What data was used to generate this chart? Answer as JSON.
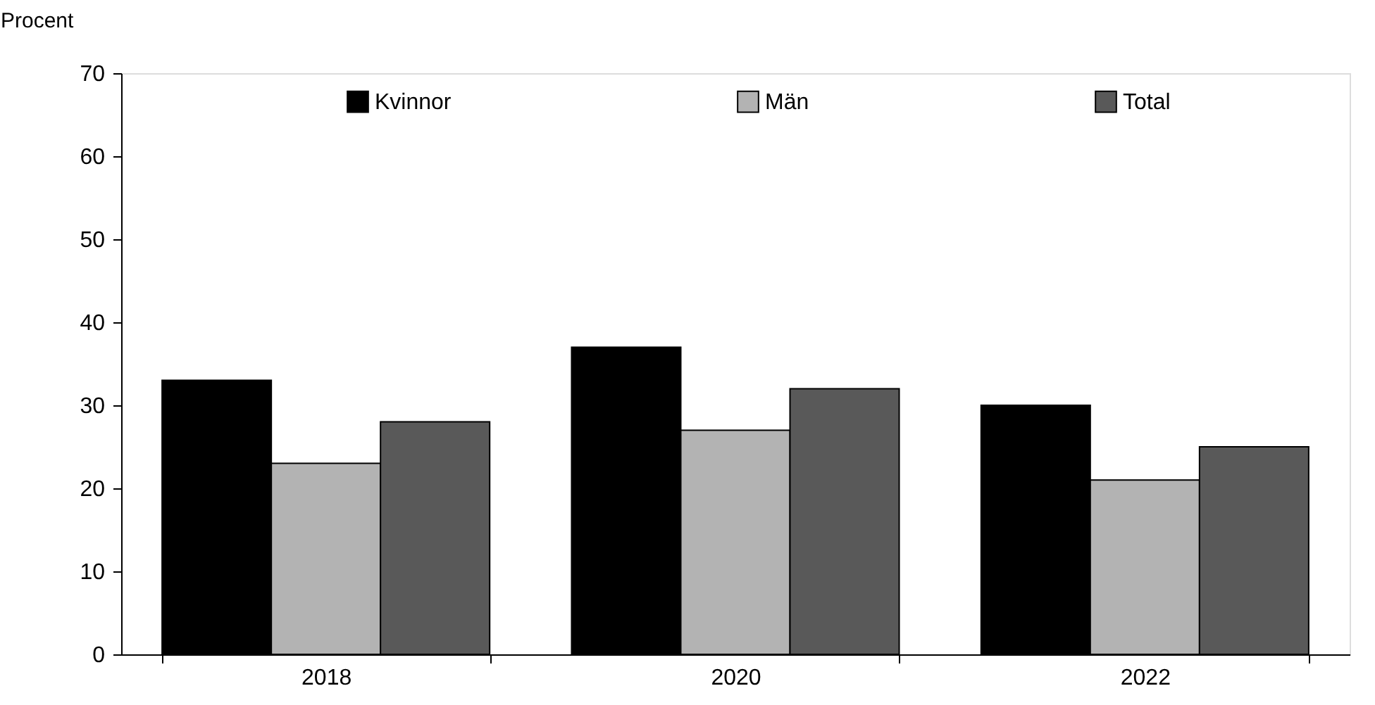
{
  "chart_data": {
    "type": "bar",
    "ylabel": "Procent",
    "categories": [
      "2018",
      "2020",
      "2022"
    ],
    "series": [
      {
        "name": "Kvinnor",
        "color": "#000000",
        "values": [
          33,
          37,
          30
        ]
      },
      {
        "name": "Män",
        "color": "#b3b3b3",
        "values": [
          23,
          27,
          21
        ]
      },
      {
        "name": "Total",
        "color": "#595959",
        "values": [
          28,
          32,
          25
        ]
      }
    ],
    "ylim": [
      0,
      70
    ],
    "yticks": [
      0,
      10,
      20,
      30,
      40,
      50,
      60,
      70
    ],
    "grid": false,
    "legend": "top"
  }
}
